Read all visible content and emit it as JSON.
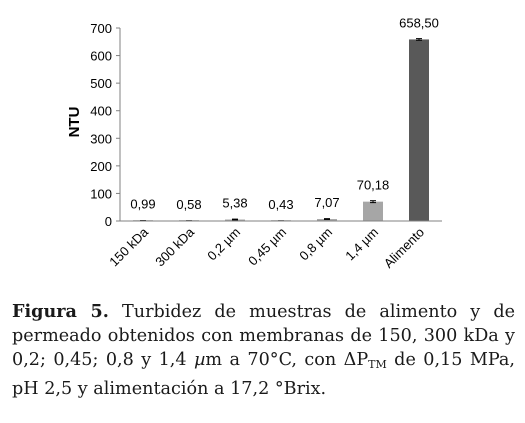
{
  "chart_data": {
    "type": "bar",
    "ylabel": "NTU",
    "ylim": [
      0,
      700
    ],
    "yticks": [
      "0",
      "100",
      "200",
      "300",
      "400",
      "500",
      "600",
      "700"
    ],
    "grid": false,
    "categories": [
      "150 kDa",
      "300 kDa",
      "0,2 µm",
      "0,45 µm",
      "0,8 µm",
      "1,4 µm",
      "Alimento"
    ],
    "values": [
      0.99,
      0.58,
      5.38,
      0.43,
      7.07,
      70.18,
      658.5
    ],
    "value_labels": [
      "0,99",
      "0,58",
      "5,38",
      "0,43",
      "7,07",
      "70,18",
      "658,50"
    ],
    "error": [
      0.5,
      0.3,
      1.5,
      0.3,
      1.5,
      3.5,
      3.0
    ],
    "bar_colors": [
      "#a6a6a6",
      "#a6a6a6",
      "#a6a6a6",
      "#a6a6a6",
      "#a6a6a6",
      "#a6a6a6",
      "#595959"
    ]
  },
  "caption": {
    "label": "Figura 5.",
    "text1": "Turbidez de muestras de alimento y de permeado obtenidos con membranas de 150, 300 kDa y 0,2; 0,45; 0,8 y 1,4 ",
    "mu": "µ",
    "text2": "m a 70°C, con ΔP",
    "sub": "TM",
    "text3": " de 0,15 MPa, pH 2,5 y alimentación a 17,2 °Brix."
  }
}
